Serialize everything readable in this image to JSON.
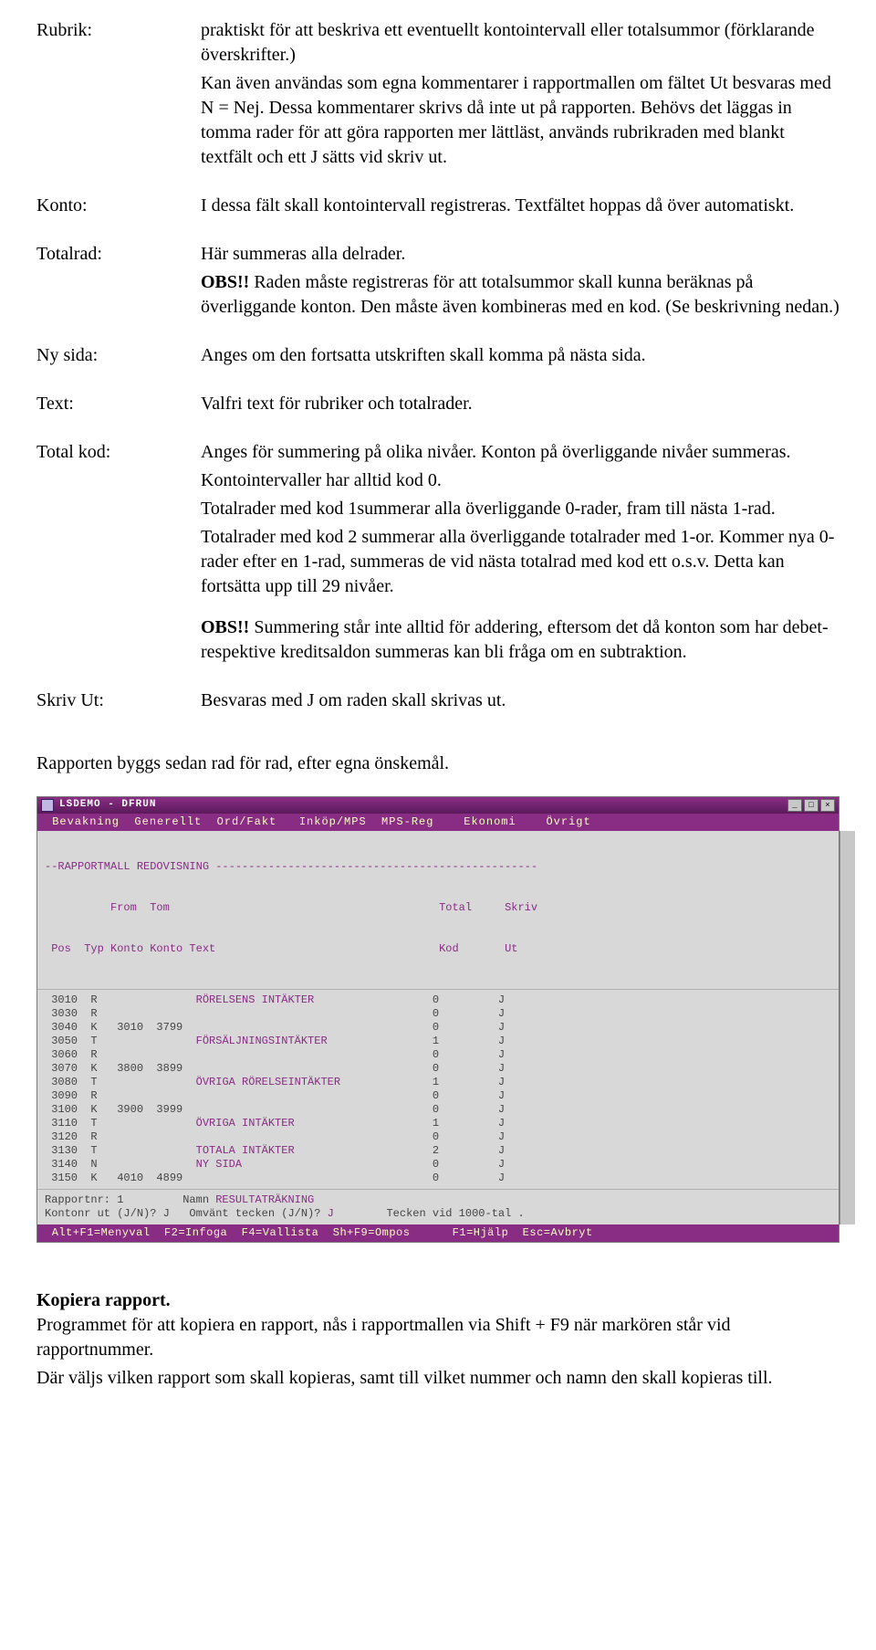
{
  "defs": {
    "rubrik": {
      "label": "Rubrik:",
      "p1": "praktiskt för att beskriva ett eventuellt kontointervall eller totalsummor (förklarande överskrifter.)",
      "p2": "Kan även användas som egna kommentarer i rapport­mallen om fältet Ut besvaras med  N = Nej. Dessa kommentarer skrivs då inte ut på rapporten. Behövs det läggas in tomma rader för att göra rapporten mer lättläst, används rubrikraden med blankt textfält och ett J sätts vid skriv ut."
    },
    "konto": {
      "label": "Konto:",
      "p1": "I dessa fält skall kontointervall registreras. Textfältet hoppas då över automatiskt."
    },
    "totalrad": {
      "label": "Totalrad:",
      "p1": "Här summeras alla delrader.",
      "obs": "OBS!!",
      "p2": " Raden måste registreras för att totalsummor skall kunna beräknas på överliggande konton. Den måste även kombineras med en kod.  (Se beskrivning nedan.)"
    },
    "nysida": {
      "label": "Ny sida:",
      "p1": "Anges om den fortsatta utskriften skall komma på nästa sida."
    },
    "text": {
      "label": "Text:",
      "p1": " Valfri text för rubriker och totalrader."
    },
    "totalkod": {
      "label": "Total kod:",
      "p1": "Anges för summering på olika nivåer. Konton på överliggande nivåer summeras.",
      "p2": "Kontointervaller har alltid kod 0.",
      "p3": "Totalrader med kod 1summerar alla överliggande 0-rader, fram till  nästa 1-rad.",
      "p4": "Totalrader med kod 2 summerar alla överliggande totalrader med 1-or. Kommer nya 0-rader efter en 1-rad, summeras de vid nästa totalrad med kod ett o.s.v. Detta kan fortsätta upp till 29 nivåer.",
      "obs": "OBS!!",
      "p5": " Summering står inte alltid för addering, eftersom det då konton som har debet- respektive kreditsaldon summeras kan bli fråga om en subtraktion."
    },
    "skrivut": {
      "label": "Skriv Ut:",
      "p1": "Besvaras med J om raden skall skrivas ut."
    }
  },
  "closing": "Rapporten byggs sedan rad för rad, efter egna önskemål.",
  "terminal": {
    "title": "LSDEMO - DFRUN",
    "winbtns": [
      "_",
      "□",
      "×"
    ],
    "menubar": " Bevakning  Generellt  Ord/Fakt   Inköp/MPS  MPS-Reg    Ekonomi    Övrigt",
    "head_l1": "--RAPPORTMALL REDOVISNING -------------------------------------------------",
    "head_l2": "          From  Tom                                         Total     Skriv",
    "head_l3": " Pos  Typ Konto Konto Text                                  Kod       Ut",
    "rows": [
      {
        "pos": "3010",
        "typ": "R",
        "from": "",
        "tom": "",
        "text": "RÖRELSENS INTÄKTER",
        "kod": "0",
        "ut": "J"
      },
      {
        "pos": "3030",
        "typ": "R",
        "from": "",
        "tom": "",
        "text": "",
        "kod": "0",
        "ut": "J"
      },
      {
        "pos": "3040",
        "typ": "K",
        "from": "3010",
        "tom": "3799",
        "text": "",
        "kod": "0",
        "ut": "J"
      },
      {
        "pos": "3050",
        "typ": "T",
        "from": "",
        "tom": "",
        "text": "FÖRSÄLJNINGSINTÄKTER",
        "kod": "1",
        "ut": "J"
      },
      {
        "pos": "3060",
        "typ": "R",
        "from": "",
        "tom": "",
        "text": "",
        "kod": "0",
        "ut": "J"
      },
      {
        "pos": "3070",
        "typ": "K",
        "from": "3800",
        "tom": "3899",
        "text": "",
        "kod": "0",
        "ut": "J"
      },
      {
        "pos": "3080",
        "typ": "T",
        "from": "",
        "tom": "",
        "text": "ÖVRIGA RÖRELSEINTÄKTER",
        "kod": "1",
        "ut": "J"
      },
      {
        "pos": "3090",
        "typ": "R",
        "from": "",
        "tom": "",
        "text": "",
        "kod": "0",
        "ut": "J"
      },
      {
        "pos": "3100",
        "typ": "K",
        "from": "3900",
        "tom": "3999",
        "text": "",
        "kod": "0",
        "ut": "J"
      },
      {
        "pos": "3110",
        "typ": "T",
        "from": "",
        "tom": "",
        "text": "ÖVRIGA INTÄKTER",
        "kod": "1",
        "ut": "J"
      },
      {
        "pos": "3120",
        "typ": "R",
        "from": "",
        "tom": "",
        "text": "",
        "kod": "0",
        "ut": "J"
      },
      {
        "pos": "3130",
        "typ": "T",
        "from": "",
        "tom": "",
        "text": "TOTALA INTÄKTER",
        "kod": "2",
        "ut": "J"
      },
      {
        "pos": "3140",
        "typ": "N",
        "from": "",
        "tom": "",
        "text": "NY SIDA",
        "kod": "0",
        "ut": "J"
      },
      {
        "pos": "3150",
        "typ": "K",
        "from": "4010",
        "tom": "4899",
        "text": "",
        "kod": "0",
        "ut": "J"
      }
    ],
    "foot_l1a": "Rapportnr: 1         Namn ",
    "foot_l1b": "RESULTATRÄKNING",
    "foot_l2a": "Kontonr ut (J/N)? J   Omvänt tecken (J/N)? ",
    "foot_l2b": "J",
    "foot_l2c": "        Tecken vid 1000-tal .",
    "statusbar": " Alt+F1=Menyval  F2=Infoga  F4=Vallista  Sh+F9=Ompos      F1=Hjälp  Esc=Avbryt"
  },
  "kopiera": {
    "heading": "Kopiera rapport.",
    "p1": "Programmet för att kopiera en rapport, nås i rapportmallen via Shift + F9 när markören står vid rapportnummer.",
    "p2": "Där väljs vilken rapport som skall kopieras, samt till vilket nummer och namn den skall kopieras till."
  }
}
